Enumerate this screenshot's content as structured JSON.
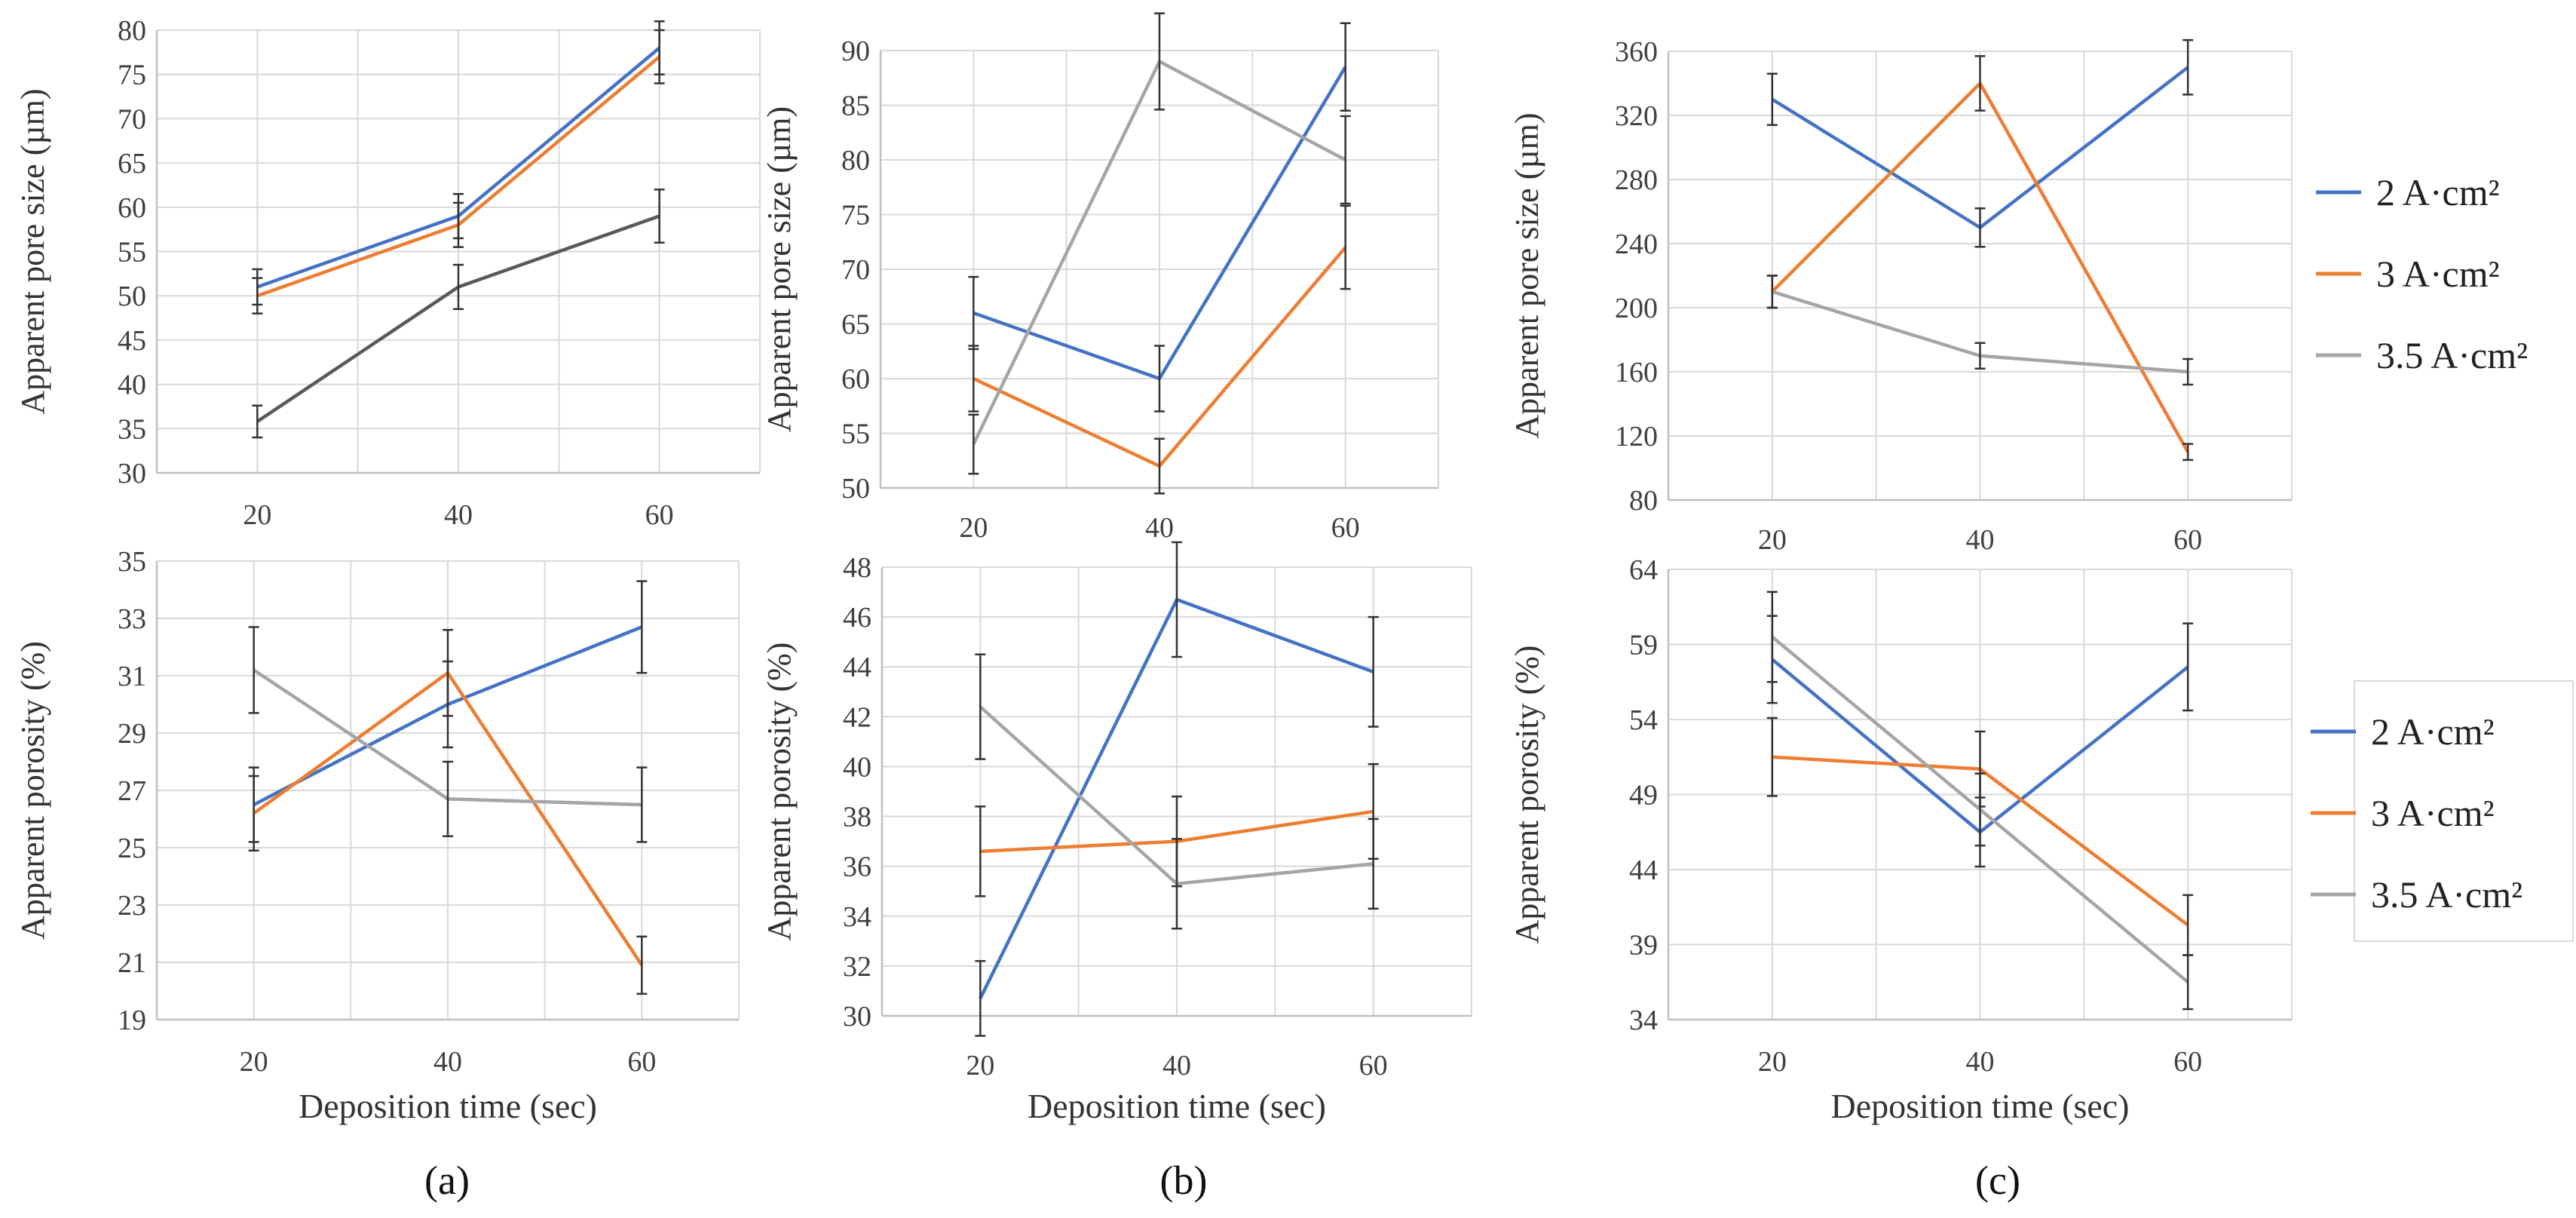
{
  "figure": {
    "captions": [
      "(a)",
      "(b)",
      "(c)"
    ],
    "legend_top": [
      "2 A·cm²",
      "3 A·cm²",
      "3.5 A·cm²"
    ],
    "legend_bottom": [
      "2 A·cm²",
      "3 A·cm²",
      "3.5 A·cm²"
    ]
  },
  "colors": {
    "blue": "#4472C4",
    "orange": "#ED7D31",
    "gray": "#A5A5A5",
    "darkgray": "#595959",
    "grid": "#D9D9D9",
    "axis": "#BFBFBF"
  },
  "chart_data": [
    {
      "id": "a-top",
      "type": "line",
      "title": "",
      "xlabel": "",
      "ylabel": "Apparent pore size (µm)",
      "categories": [
        "20",
        "40",
        "60"
      ],
      "ylim": [
        30,
        80
      ],
      "yticks": [
        30,
        35,
        40,
        45,
        50,
        55,
        60,
        65,
        70,
        75,
        80
      ],
      "series": [
        {
          "name": "2 A·cm²",
          "color": "blue",
          "values": [
            51,
            59,
            78
          ],
          "errors": [
            2,
            2.5,
            3
          ]
        },
        {
          "name": "3 A·cm²",
          "color": "orange",
          "values": [
            50,
            58,
            77
          ],
          "errors": [
            2,
            2.5,
            3
          ]
        },
        {
          "name": "3.5 A·cm²",
          "color": "darkgray",
          "values": [
            35.8,
            51,
            59
          ],
          "errors": [
            1.8,
            2.5,
            3
          ]
        }
      ]
    },
    {
      "id": "b-top",
      "type": "line",
      "title": "",
      "xlabel": "",
      "ylabel": "Apparent pore size (µm)",
      "categories": [
        "20",
        "40",
        "60"
      ],
      "ylim": [
        50,
        90
      ],
      "yticks": [
        50,
        55,
        60,
        65,
        70,
        75,
        80,
        85,
        90
      ],
      "series": [
        {
          "name": "2 A·cm²",
          "color": "blue",
          "values": [
            66,
            60,
            88.5
          ],
          "errors": [
            3.3,
            3,
            4
          ]
        },
        {
          "name": "3 A·cm²",
          "color": "orange",
          "values": [
            60,
            52,
            72
          ],
          "errors": [
            3,
            2.5,
            3.8
          ]
        },
        {
          "name": "3.5 A·cm²",
          "color": "gray",
          "values": [
            54,
            89,
            80
          ],
          "errors": [
            2.7,
            4.4,
            4
          ]
        }
      ]
    },
    {
      "id": "c-top",
      "type": "line",
      "title": "",
      "xlabel": "",
      "ylabel": "Apparent pore size (µm)",
      "categories": [
        "20",
        "40",
        "60"
      ],
      "ylim": [
        80,
        360
      ],
      "yticks": [
        80,
        120,
        160,
        200,
        240,
        280,
        320,
        360
      ],
      "series": [
        {
          "name": "2 A·cm²",
          "color": "blue",
          "values": [
            330,
            250,
            350
          ],
          "errors": [
            16,
            12,
            17
          ]
        },
        {
          "name": "3 A·cm²",
          "color": "orange",
          "values": [
            210,
            340,
            110
          ],
          "errors": [
            10,
            17,
            5
          ]
        },
        {
          "name": "3.5 A·cm²",
          "color": "gray",
          "values": [
            210,
            170,
            160
          ],
          "errors": [
            10,
            8,
            8
          ]
        }
      ]
    },
    {
      "id": "a-bottom",
      "type": "line",
      "title": "",
      "xlabel": "Deposition time (sec)",
      "ylabel": "Apparent porosity (%)",
      "categories": [
        "20",
        "40",
        "60"
      ],
      "ylim": [
        19,
        35
      ],
      "yticks": [
        19,
        21,
        23,
        25,
        27,
        29,
        31,
        33,
        35
      ],
      "series": [
        {
          "name": "2 A·cm²",
          "color": "blue",
          "values": [
            26.5,
            30,
            32.7
          ],
          "errors": [
            1.3,
            1.5,
            1.6
          ]
        },
        {
          "name": "3 A·cm²",
          "color": "orange",
          "values": [
            26.2,
            31.1,
            20.9
          ],
          "errors": [
            1.3,
            1.5,
            1
          ]
        },
        {
          "name": "3.5 A·cm²",
          "color": "gray",
          "values": [
            31.2,
            26.7,
            26.5
          ],
          "errors": [
            1.5,
            1.3,
            1.3
          ]
        }
      ]
    },
    {
      "id": "b-bottom",
      "type": "line",
      "title": "",
      "xlabel": "Deposition time (sec)",
      "ylabel": "Apparent porosity (%)",
      "categories": [
        "20",
        "40",
        "60"
      ],
      "ylim": [
        30,
        48
      ],
      "yticks": [
        30,
        32,
        34,
        36,
        38,
        40,
        42,
        44,
        46,
        48
      ],
      "series": [
        {
          "name": "2 A·cm²",
          "color": "blue",
          "values": [
            30.7,
            46.7,
            43.8
          ],
          "errors": [
            1.5,
            2.3,
            2.2
          ]
        },
        {
          "name": "3 A·cm²",
          "color": "orange",
          "values": [
            36.6,
            37,
            38.2
          ],
          "errors": [
            1.8,
            1.8,
            1.9
          ]
        },
        {
          "name": "3.5 A·cm²",
          "color": "gray",
          "values": [
            42.4,
            35.3,
            36.1
          ],
          "errors": [
            2.1,
            1.8,
            1.8
          ]
        }
      ]
    },
    {
      "id": "c-bottom",
      "type": "line",
      "title": "",
      "xlabel": "Deposition time (sec)",
      "ylabel": "Apparent porosity (%)",
      "categories": [
        "20",
        "40",
        "60"
      ],
      "ylim": [
        34,
        64
      ],
      "yticks": [
        34,
        39,
        44,
        49,
        54,
        59,
        64
      ],
      "series": [
        {
          "name": "2 A·cm²",
          "color": "blue",
          "values": [
            58,
            46.5,
            57.5
          ],
          "errors": [
            2.9,
            2.3,
            2.9
          ]
        },
        {
          "name": "3 A·cm²",
          "color": "orange",
          "values": [
            51.5,
            50.7,
            40.3
          ],
          "errors": [
            2.6,
            2.5,
            2
          ]
        },
        {
          "name": "3.5 A·cm²",
          "color": "gray",
          "values": [
            59.5,
            48,
            36.5
          ],
          "errors": [
            3,
            2.4,
            1.8
          ]
        }
      ]
    }
  ]
}
